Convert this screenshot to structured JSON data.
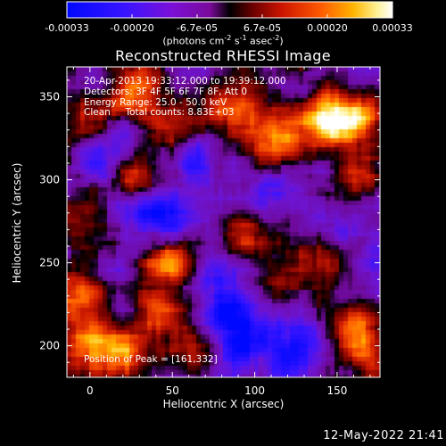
{
  "colorbar": {
    "tick_labels": [
      "-0.00033",
      "-0.00020",
      "-6.7e-05",
      "6.7e-05",
      "0.00020",
      "0.00033"
    ],
    "range": [
      -0.00033,
      0.00033
    ],
    "units_prefix": "(photons cm",
    "units_exp1": "-2",
    "units_mid": " s",
    "units_exp2": "-1",
    "units_mid2": " asec",
    "units_exp3": "-2",
    "units_suffix": ")"
  },
  "chart_data": {
    "type": "heatmap",
    "title": "Reconstructed RHESSI Image",
    "xlabel": "Heliocentric X (arcsec)",
    "ylabel": "Heliocentric Y (arcsec)",
    "xlim": [
      -14,
      176
    ],
    "ylim": [
      181,
      368
    ],
    "xticks": [
      0,
      50,
      100,
      150
    ],
    "yticks": [
      200,
      250,
      300,
      350
    ],
    "xtick_labels": [
      "0",
      "50",
      "100",
      "150"
    ],
    "ytick_labels": [
      "200",
      "250",
      "300",
      "350"
    ],
    "colormap": "blue-purple-red-yellow-white",
    "peak_xy": [
      161,
      332
    ],
    "hotspots": [
      {
        "x": 140,
        "y": 338,
        "v": 1.0
      },
      {
        "x": 163,
        "y": 334,
        "v": 1.0
      },
      {
        "x": 112,
        "y": 326,
        "v": 0.9
      },
      {
        "x": 86,
        "y": 346,
        "v": 0.75
      },
      {
        "x": 28,
        "y": 353,
        "v": 0.75
      },
      {
        "x": 50,
        "y": 333,
        "v": 0.6
      },
      {
        "x": -3,
        "y": 336,
        "v": 0.55
      },
      {
        "x": 30,
        "y": 303,
        "v": 0.65
      },
      {
        "x": -6,
        "y": 275,
        "v": 0.55
      },
      {
        "x": 48,
        "y": 251,
        "v": 0.9
      },
      {
        "x": 95,
        "y": 268,
        "v": 0.55
      },
      {
        "x": 140,
        "y": 255,
        "v": 0.6
      },
      {
        "x": 165,
        "y": 300,
        "v": 0.6
      },
      {
        "x": 120,
        "y": 240,
        "v": 0.55
      },
      {
        "x": 45,
        "y": 220,
        "v": 0.6
      },
      {
        "x": -5,
        "y": 230,
        "v": 0.65
      },
      {
        "x": 0,
        "y": 200,
        "v": 0.9
      },
      {
        "x": 20,
        "y": 195,
        "v": 0.6
      },
      {
        "x": 65,
        "y": 200,
        "v": 0.5
      },
      {
        "x": 160,
        "y": 210,
        "v": 0.65
      },
      {
        "x": 170,
        "y": 196,
        "v": 0.55
      }
    ],
    "coldspots": [
      {
        "x": 90,
        "y": 208,
        "v": -0.9
      },
      {
        "x": 40,
        "y": 275,
        "v": -0.7
      },
      {
        "x": 125,
        "y": 200,
        "v": -0.6
      },
      {
        "x": 80,
        "y": 230,
        "v": -0.5
      },
      {
        "x": 150,
        "y": 272,
        "v": -0.45
      },
      {
        "x": 10,
        "y": 318,
        "v": -0.45
      },
      {
        "x": 105,
        "y": 290,
        "v": -0.4
      },
      {
        "x": 60,
        "y": 315,
        "v": -0.4
      }
    ]
  },
  "annotation": {
    "line1": "20-Apr-2013 19:33:12.000 to 19:39:12.000",
    "line2": "Detectors: 3F 4F 5F 6F 7F 8F, Att 0",
    "line3": "Energy Range: 25.0 - 50.0 keV",
    "line4": "Clean     Total counts: 8.83E+03",
    "peak": "Position of Peak = [161,332]"
  },
  "timestamp": "12-May-2022 21:41"
}
